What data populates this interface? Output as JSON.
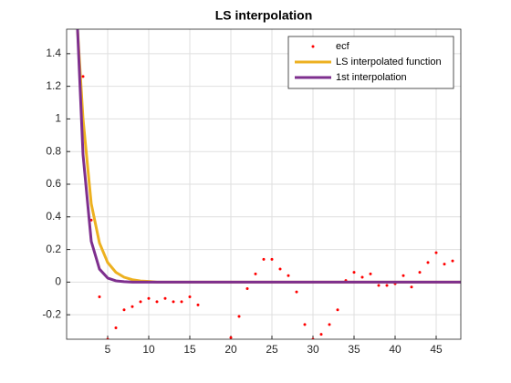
{
  "chart_data": {
    "type": "line",
    "title": "LS interpolation",
    "xlim": [
      0,
      48
    ],
    "ylim": [
      -0.35,
      1.55
    ],
    "xticks": [
      5,
      10,
      15,
      20,
      25,
      30,
      35,
      40,
      45
    ],
    "yticks": [
      -0.2,
      0,
      0.2,
      0.4,
      0.6,
      0.8,
      1,
      1.2,
      1.4
    ],
    "grid": true,
    "legend": "northeast",
    "series": [
      {
        "name": "ecf",
        "color": "#ff0000",
        "style": "markers",
        "x": [
          2,
          3,
          4,
          5,
          6,
          7,
          8,
          9,
          10,
          11,
          12,
          13,
          14,
          15,
          16,
          20,
          21,
          22,
          23,
          24,
          25,
          26,
          27,
          28,
          29,
          30,
          31,
          32,
          33,
          34,
          35,
          36,
          37,
          38,
          39,
          40,
          41,
          42,
          43,
          44,
          45,
          46,
          47
        ],
        "values": [
          1.26,
          0.38,
          -0.09,
          -0.35,
          -0.28,
          -0.17,
          -0.15,
          -0.12,
          -0.1,
          -0.12,
          -0.1,
          -0.12,
          -0.12,
          -0.09,
          -0.14,
          -0.34,
          -0.21,
          -0.04,
          0.05,
          0.14,
          0.14,
          0.08,
          0.04,
          -0.06,
          -0.26,
          -0.35,
          -0.32,
          -0.26,
          -0.17,
          0.01,
          0.06,
          0.03,
          0.05,
          -0.02,
          -0.02,
          -0.01,
          0.04,
          -0.03,
          0.06,
          0.12,
          0.18,
          0.11,
          0.13
        ]
      },
      {
        "name": "LS interpolated function",
        "color": "#edb120",
        "style": "line",
        "x": [
          1,
          2,
          3,
          4,
          5,
          6,
          7,
          8,
          9,
          10,
          11,
          12,
          13,
          14,
          15,
          16,
          17,
          18,
          19,
          20,
          21,
          22,
          23,
          24,
          25,
          26,
          27,
          28,
          29,
          30,
          31,
          32,
          33,
          34,
          35,
          36,
          37,
          38,
          39,
          40,
          41,
          42,
          43,
          44,
          45,
          46,
          47,
          48
        ],
        "values": [
          1.82,
          1.0,
          0.48,
          0.24,
          0.12,
          0.06,
          0.03,
          0.015,
          0.007,
          0.004,
          0,
          0,
          0,
          0,
          0,
          0,
          0,
          0,
          0,
          0,
          0,
          0,
          0,
          0,
          0,
          0,
          0,
          0,
          0,
          0,
          0,
          0,
          0,
          0,
          0,
          0,
          0,
          0,
          0,
          0,
          0,
          0,
          0,
          0,
          0,
          0,
          0,
          0
        ]
      },
      {
        "name": "1st interpolation",
        "color": "#7e2f8e",
        "style": "line",
        "x": [
          1,
          2,
          3,
          4,
          5,
          6,
          7,
          8,
          9,
          10,
          11,
          12,
          13,
          14,
          15,
          16,
          17,
          18,
          19,
          20,
          21,
          22,
          23,
          24,
          25,
          26,
          27,
          28,
          29,
          30,
          31,
          32,
          33,
          34,
          35,
          36,
          37,
          38,
          39,
          40,
          41,
          42,
          43,
          44,
          45,
          46,
          47,
          48
        ],
        "values": [
          1.93,
          0.78,
          0.25,
          0.08,
          0.025,
          0.008,
          0.003,
          0,
          0,
          0,
          0,
          0,
          0,
          0,
          0,
          0,
          0,
          0,
          0,
          0,
          0,
          0,
          0,
          0,
          0,
          0,
          0,
          0,
          0,
          0,
          0,
          0,
          0,
          0,
          0,
          0,
          0,
          0,
          0,
          0,
          0,
          0,
          0,
          0,
          0,
          0,
          0,
          0
        ]
      }
    ]
  }
}
